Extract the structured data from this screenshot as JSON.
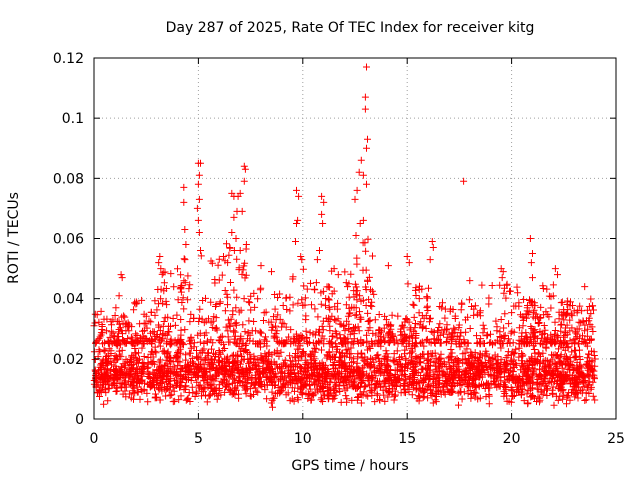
{
  "chart_data": {
    "type": "scatter",
    "title": "Day 287 of 2025, Rate Of TEC Index for receiver kitg",
    "xlabel": "GPS time / hours",
    "ylabel": "ROTI / TECUs",
    "xlim": [
      0,
      25
    ],
    "ylim": [
      0,
      0.12
    ],
    "xticks": [
      0,
      5,
      10,
      15,
      20,
      25
    ],
    "xtick_labels": [
      "0",
      "5",
      "10",
      "15",
      "20",
      "25"
    ],
    "yticks": [
      0,
      0.02,
      0.04,
      0.06,
      0.08,
      0.1,
      0.12
    ],
    "ytick_labels": [
      "0",
      "0.02",
      "0.04",
      "0.06",
      "0.08",
      "0.1",
      "0.12"
    ],
    "grid": true,
    "marker": "+",
    "series_color": "#ff0000",
    "data_x_range": [
      0,
      24
    ],
    "typical_band": [
      0.005,
      0.025
    ],
    "notable_points": [
      {
        "x": 13.05,
        "y": 0.117
      },
      {
        "x": 13.0,
        "y": 0.107
      },
      {
        "x": 13.0,
        "y": 0.103
      },
      {
        "x": 13.1,
        "y": 0.093
      },
      {
        "x": 13.05,
        "y": 0.09
      },
      {
        "x": 12.8,
        "y": 0.086
      },
      {
        "x": 12.7,
        "y": 0.082
      },
      {
        "x": 12.9,
        "y": 0.081
      },
      {
        "x": 13.05,
        "y": 0.078
      },
      {
        "x": 12.6,
        "y": 0.076
      },
      {
        "x": 12.5,
        "y": 0.073
      },
      {
        "x": 12.75,
        "y": 0.065
      },
      {
        "x": 12.55,
        "y": 0.061
      },
      {
        "x": 12.9,
        "y": 0.066
      },
      {
        "x": 5.0,
        "y": 0.085
      },
      {
        "x": 5.1,
        "y": 0.085
      },
      {
        "x": 5.05,
        "y": 0.081
      },
      {
        "x": 5.0,
        "y": 0.078
      },
      {
        "x": 5.05,
        "y": 0.073
      },
      {
        "x": 4.95,
        "y": 0.07
      },
      {
        "x": 5.0,
        "y": 0.066
      },
      {
        "x": 5.05,
        "y": 0.062
      },
      {
        "x": 5.1,
        "y": 0.056
      },
      {
        "x": 4.3,
        "y": 0.077
      },
      {
        "x": 4.3,
        "y": 0.072
      },
      {
        "x": 4.35,
        "y": 0.063
      },
      {
        "x": 4.4,
        "y": 0.058
      },
      {
        "x": 7.2,
        "y": 0.084
      },
      {
        "x": 7.25,
        "y": 0.083
      },
      {
        "x": 7.2,
        "y": 0.079
      },
      {
        "x": 7.0,
        "y": 0.075
      },
      {
        "x": 6.9,
        "y": 0.074
      },
      {
        "x": 6.7,
        "y": 0.074
      },
      {
        "x": 6.6,
        "y": 0.075
      },
      {
        "x": 7.1,
        "y": 0.069
      },
      {
        "x": 6.85,
        "y": 0.069
      },
      {
        "x": 6.7,
        "y": 0.067
      },
      {
        "x": 6.6,
        "y": 0.062
      },
      {
        "x": 6.8,
        "y": 0.06
      },
      {
        "x": 6.5,
        "y": 0.057
      },
      {
        "x": 7.0,
        "y": 0.056
      },
      {
        "x": 7.3,
        "y": 0.058
      },
      {
        "x": 6.4,
        "y": 0.052
      },
      {
        "x": 6.2,
        "y": 0.054
      },
      {
        "x": 9.7,
        "y": 0.076
      },
      {
        "x": 9.8,
        "y": 0.074
      },
      {
        "x": 9.75,
        "y": 0.066
      },
      {
        "x": 9.7,
        "y": 0.065
      },
      {
        "x": 9.65,
        "y": 0.059
      },
      {
        "x": 9.9,
        "y": 0.054
      },
      {
        "x": 9.95,
        "y": 0.053
      },
      {
        "x": 10.9,
        "y": 0.074
      },
      {
        "x": 11.0,
        "y": 0.072
      },
      {
        "x": 10.9,
        "y": 0.068
      },
      {
        "x": 10.95,
        "y": 0.065
      },
      {
        "x": 10.8,
        "y": 0.056
      },
      {
        "x": 10.7,
        "y": 0.053
      },
      {
        "x": 11.5,
        "y": 0.05
      },
      {
        "x": 11.7,
        "y": 0.048
      },
      {
        "x": 17.7,
        "y": 0.079
      },
      {
        "x": 16.2,
        "y": 0.059
      },
      {
        "x": 16.25,
        "y": 0.057
      },
      {
        "x": 16.1,
        "y": 0.053
      },
      {
        "x": 15.0,
        "y": 0.054
      },
      {
        "x": 15.1,
        "y": 0.052
      },
      {
        "x": 20.9,
        "y": 0.06
      },
      {
        "x": 21.0,
        "y": 0.055
      },
      {
        "x": 20.95,
        "y": 0.052
      },
      {
        "x": 21.0,
        "y": 0.047
      },
      {
        "x": 19.5,
        "y": 0.05
      },
      {
        "x": 19.6,
        "y": 0.049
      },
      {
        "x": 19.55,
        "y": 0.047
      },
      {
        "x": 22.1,
        "y": 0.05
      },
      {
        "x": 22.2,
        "y": 0.048
      },
      {
        "x": 3.15,
        "y": 0.054
      },
      {
        "x": 3.1,
        "y": 0.052
      },
      {
        "x": 3.2,
        "y": 0.05
      },
      {
        "x": 1.3,
        "y": 0.048
      },
      {
        "x": 1.35,
        "y": 0.047
      },
      {
        "x": 1.2,
        "y": 0.041
      },
      {
        "x": 1.05,
        "y": 0.037
      },
      {
        "x": 0.0,
        "y": 0.031
      },
      {
        "x": 8.0,
        "y": 0.051
      },
      {
        "x": 8.5,
        "y": 0.049
      },
      {
        "x": 14.1,
        "y": 0.051
      },
      {
        "x": 23.5,
        "y": 0.044
      },
      {
        "x": 18.0,
        "y": 0.046
      }
    ],
    "bursts": [
      {
        "x": [
          0.0,
          1.6
        ],
        "peak": 0.036
      },
      {
        "x": [
          1.6,
          3.0
        ],
        "peak": 0.04
      },
      {
        "x": [
          3.0,
          4.2
        ],
        "peak": 0.05
      },
      {
        "x": [
          4.2,
          6.2
        ],
        "peak": 0.055
      },
      {
        "x": [
          6.2,
          7.6
        ],
        "peak": 0.06
      },
      {
        "x": [
          7.6,
          9.5
        ],
        "peak": 0.045
      },
      {
        "x": [
          9.5,
          11.2
        ],
        "peak": 0.05
      },
      {
        "x": [
          11.2,
          12.4
        ],
        "peak": 0.05
      },
      {
        "x": [
          12.4,
          13.4
        ],
        "peak": 0.06
      },
      {
        "x": [
          13.4,
          15.0
        ],
        "peak": 0.035
      },
      {
        "x": [
          15.0,
          16.5
        ],
        "peak": 0.045
      },
      {
        "x": [
          16.5,
          18.5
        ],
        "peak": 0.04
      },
      {
        "x": [
          18.5,
          20.5
        ],
        "peak": 0.045
      },
      {
        "x": [
          20.5,
          21.4
        ],
        "peak": 0.04
      },
      {
        "x": [
          21.4,
          22.6
        ],
        "peak": 0.045
      },
      {
        "x": [
          22.6,
          24.0
        ],
        "peak": 0.04
      }
    ]
  }
}
